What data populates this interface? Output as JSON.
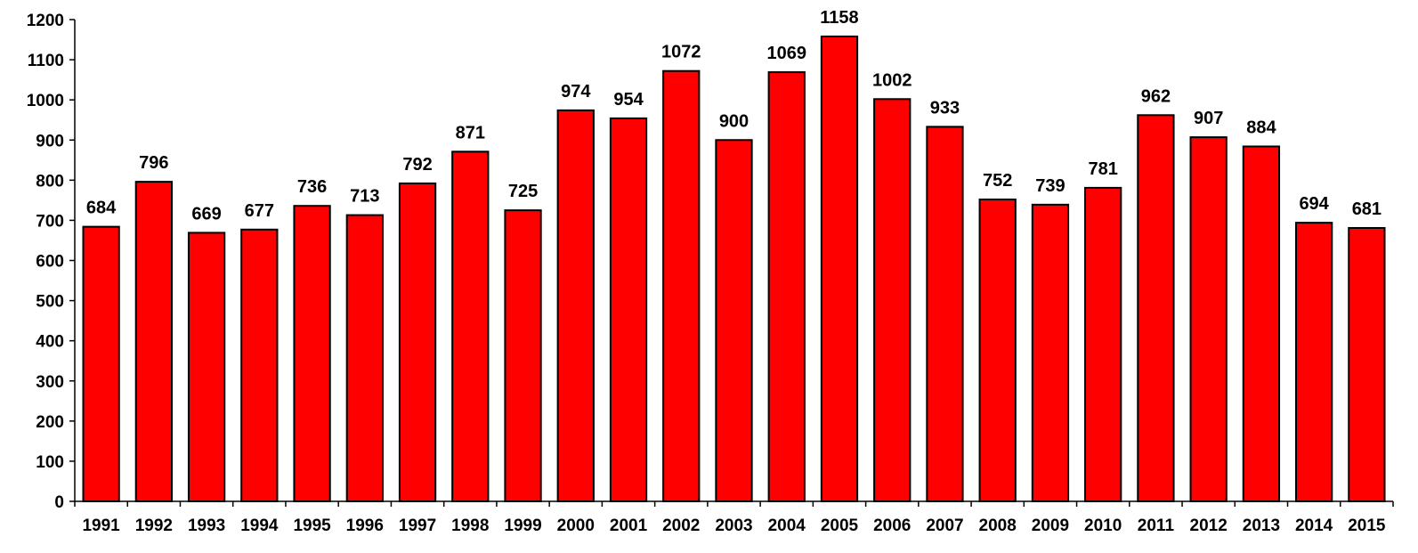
{
  "chart_data": {
    "type": "bar",
    "title": "",
    "xlabel": "",
    "ylabel": "",
    "categories": [
      "1991",
      "1992",
      "1993",
      "1994",
      "1995",
      "1996",
      "1997",
      "1998",
      "1999",
      "2000",
      "2001",
      "2002",
      "2003",
      "2004",
      "2005",
      "2006",
      "2007",
      "2008",
      "2009",
      "2010",
      "2011",
      "2012",
      "2013",
      "2014",
      "2015"
    ],
    "values": [
      684,
      796,
      669,
      677,
      736,
      713,
      792,
      871,
      725,
      974,
      954,
      1072,
      900,
      1069,
      1158,
      1002,
      933,
      752,
      739,
      781,
      962,
      907,
      884,
      694,
      681
    ],
    "ylim": [
      0,
      1200
    ],
    "yticks": [
      0,
      100,
      200,
      300,
      400,
      500,
      600,
      700,
      800,
      900,
      1000,
      1100,
      1200
    ],
    "grid": false,
    "legend": "none",
    "bar_color": "#ff0000",
    "bar_edge_color": "#000000",
    "data_labels": true
  }
}
